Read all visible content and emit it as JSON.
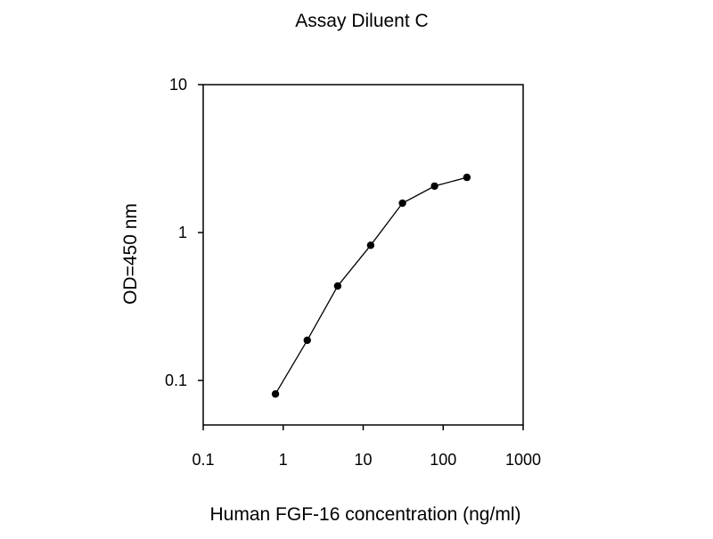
{
  "chart_data": {
    "type": "line",
    "title": "Assay Diluent C",
    "xlabel": "Human FGF-16 concentration (ng/ml)",
    "ylabel": "OD=450 nm",
    "x_scale": "log",
    "y_scale": "log",
    "xlim": [
      0.1,
      1000
    ],
    "ylim": [
      0.05,
      10
    ],
    "x_ticks": [
      0.1,
      1,
      10,
      100,
      1000
    ],
    "x_tick_labels": [
      "0.1",
      "1",
      "10",
      "100",
      "1000"
    ],
    "y_ticks": [
      0.1,
      1,
      10
    ],
    "y_tick_labels": [
      "0.1",
      "1",
      "10"
    ],
    "grid": false,
    "series": [
      {
        "x": [
          0.8,
          2,
          4.8,
          12.4,
          31,
          78,
          198
        ],
        "y": [
          0.081,
          0.187,
          0.435,
          0.82,
          1.58,
          2.06,
          2.36
        ],
        "marker": "circle",
        "color": "#000000"
      }
    ]
  }
}
